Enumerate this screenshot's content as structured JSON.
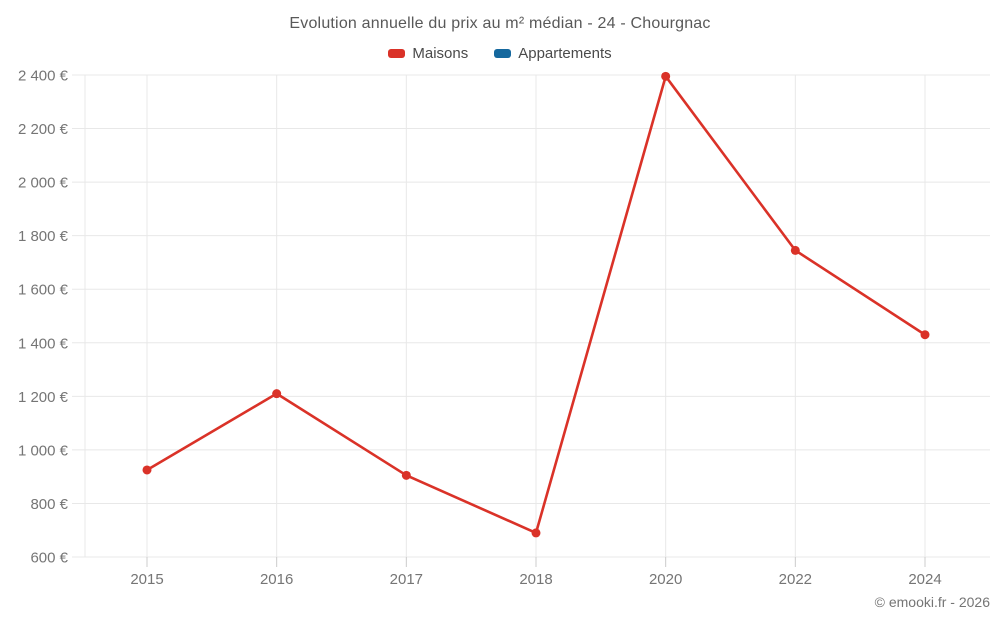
{
  "chart": {
    "title": "Evolution annuelle du prix au m² médian - 24 - Chourgnac",
    "copyright": "© emooki.fr - 2026"
  },
  "chart_data": {
    "type": "line",
    "categories": [
      "2015",
      "2016",
      "2017",
      "2018",
      "2020",
      "2022",
      "2024"
    ],
    "series": [
      {
        "name": "Maisons",
        "color": "#da3228",
        "values": [
          925,
          1210,
          905,
          690,
          2395,
          1745,
          1430
        ]
      },
      {
        "name": "Appartements",
        "color": "#15689e",
        "values": []
      }
    ],
    "title": "Evolution annuelle du prix au m² médian - 24 - Chourgnac",
    "xlabel": "",
    "ylabel": "",
    "ylim": [
      600,
      2400
    ],
    "ytick_step": 200,
    "ytick_suffix": " €",
    "grid": true,
    "legend_position": "top",
    "marker": "circle"
  },
  "colors": {
    "grid": "#e8e8e8",
    "tick": "#cccccc",
    "tick_label": "#757575",
    "title_text": "#595959",
    "legend_text": "#4a4a4a"
  }
}
